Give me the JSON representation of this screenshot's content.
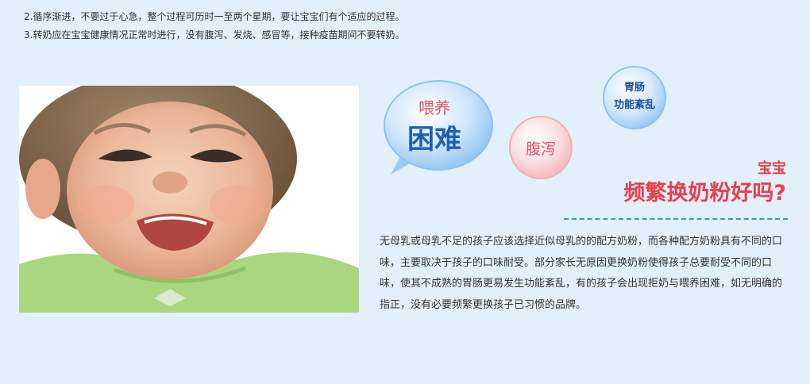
{
  "notes": [
    "2.循序渐进，不要过于心急，整个过程可历时一至两个星期，要让宝宝们有个适应的过程。",
    "3.转奶应在宝宝健康情况正常时进行，没有腹泻、发烧、感冒等，接种疫苗期间不要转奶。"
  ],
  "bubbles": {
    "weiyang": "喂养",
    "kunnan": "困难",
    "fuxie": "腹泻",
    "weichang_line1": "胃肠",
    "weichang_line2": "功能紊乱"
  },
  "heading": {
    "small": "宝宝",
    "big": "频繁换奶粉好吗?"
  },
  "paragraph": "无母乳或母乳不足的孩子应该选择近似母乳的的配方奶粉，而各种配方奶粉具有不同的口味，主要取决于孩子的口味耐受。部分家长无原因更换奶粉使得孩子总要耐受不同的口味，使其不成熟的胃肠更易发生功能紊乱，有的孩子会出现拒奶与喂养困难，如无明确的指正，没有必要频繁更换孩子已习惯的品牌。",
  "colors": {
    "background": "#e2f0fb",
    "accent_red": "#e8404a",
    "accent_blue": "#1f5fb4",
    "dash_blue": "#3f8fdc"
  }
}
